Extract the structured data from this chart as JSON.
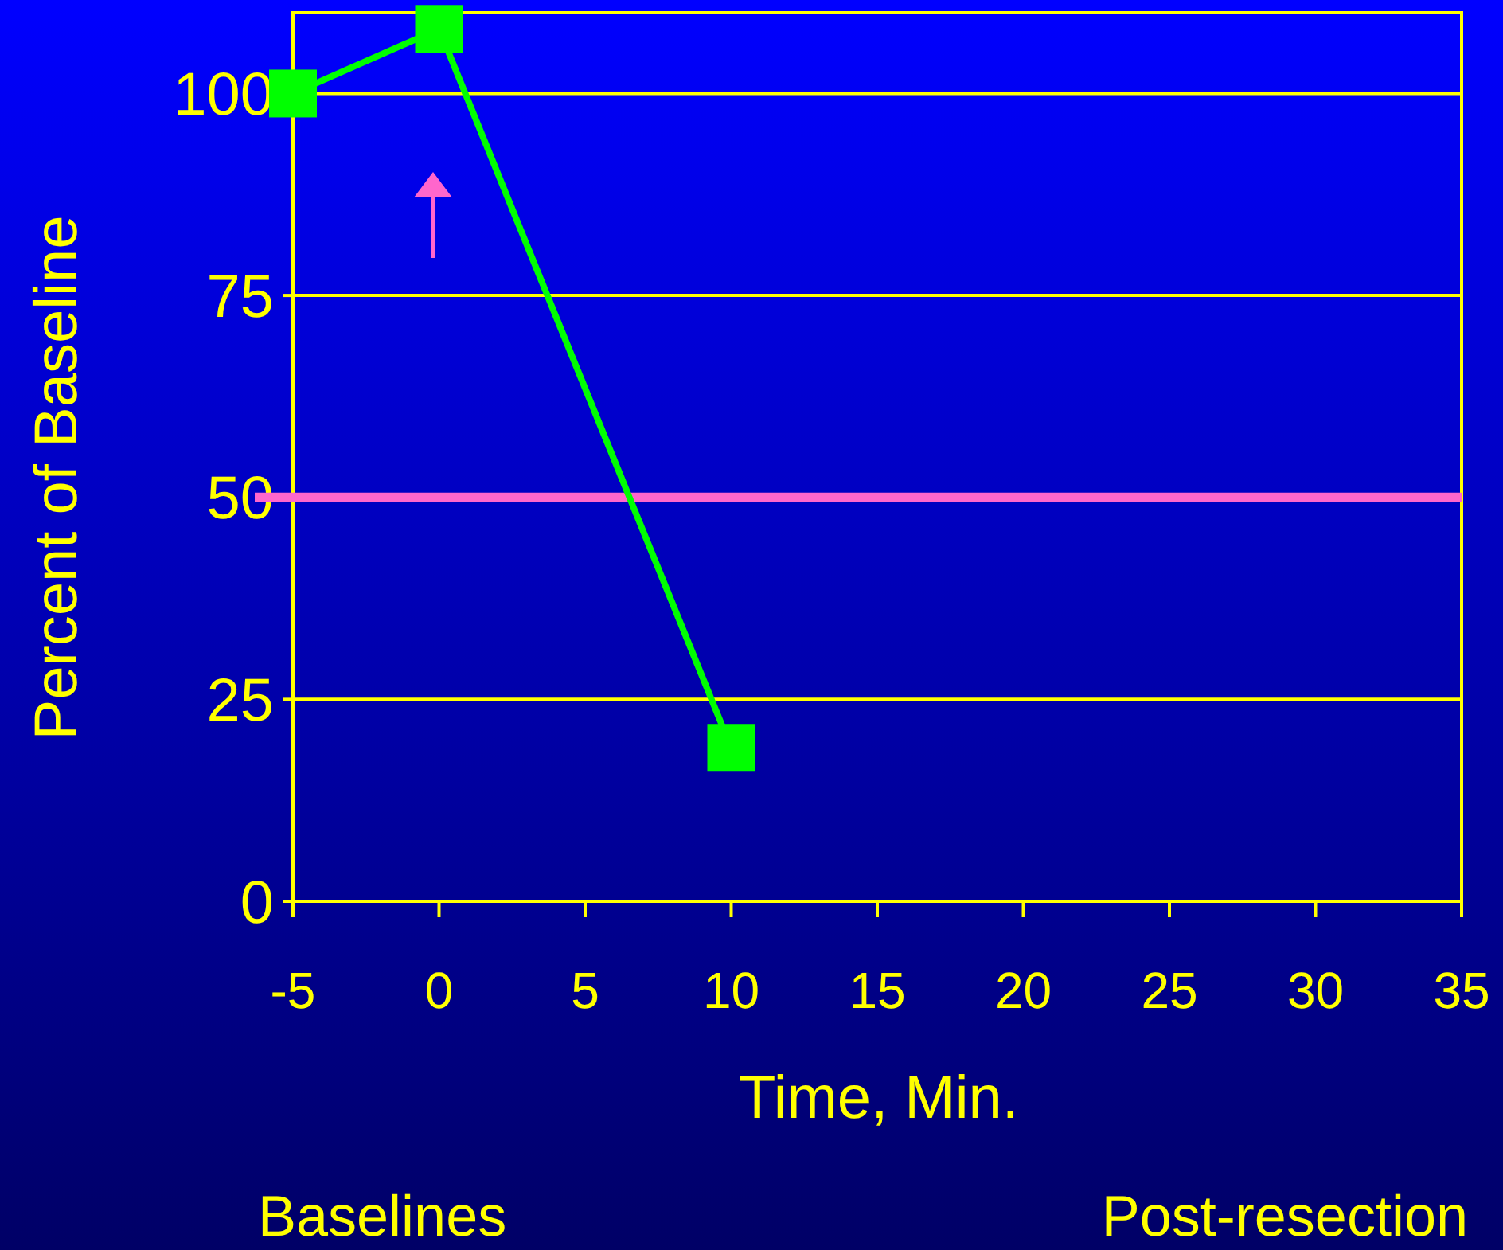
{
  "chart_data": {
    "type": "line",
    "xlabel": "Time, Min.",
    "ylabel": "Percent of Baseline",
    "x": [
      -5,
      0,
      10
    ],
    "series": [
      {
        "color": "#00ff00",
        "values": [
          100,
          108,
          19
        ]
      }
    ],
    "xlim": [
      -5,
      35
    ],
    "xticks": [
      -5,
      0,
      5,
      10,
      15,
      20,
      25,
      30,
      35
    ],
    "ylim": [
      0,
      110
    ],
    "yticks": [
      0,
      25,
      50,
      75,
      100
    ],
    "grid": "y",
    "marker": "square",
    "line_style": "solid",
    "ref_lines": [
      {
        "axis": "y",
        "value": 50,
        "color": "#ff66cc"
      }
    ],
    "annotations": [
      "Baselines",
      "Post-resection"
    ]
  }
}
